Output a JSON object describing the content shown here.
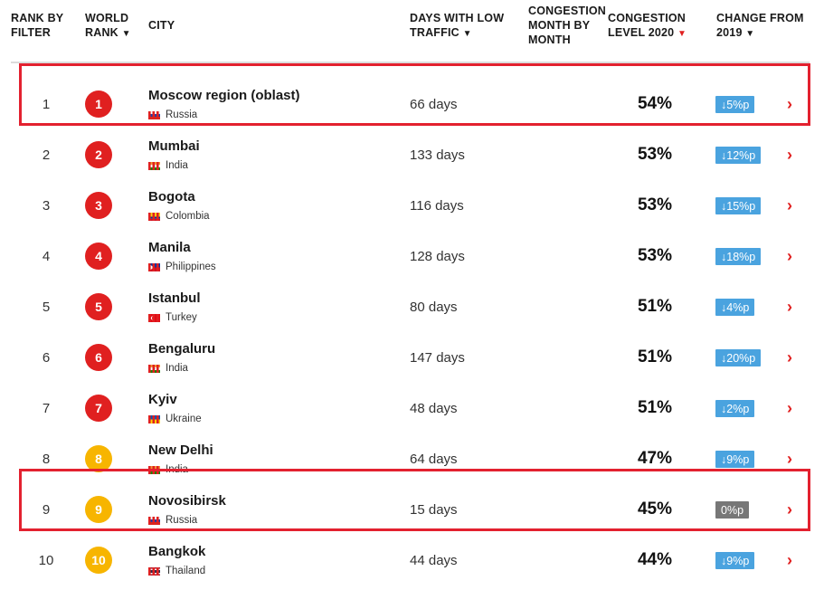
{
  "headers": {
    "rank_by_filter": [
      "RANK BY",
      "FILTER"
    ],
    "world_rank": [
      "WORLD",
      "RANK"
    ],
    "city": "CITY",
    "days_low_traffic": [
      "DAYS WITH LOW",
      "TRAFFIC"
    ],
    "congestion_month": [
      "CONGESTION",
      "MONTH BY",
      "MONTH"
    ],
    "congestion_level": [
      "CONGESTION",
      "LEVEL 2020"
    ],
    "change_from": [
      "CHANGE FROM",
      "2019"
    ]
  },
  "colors": {
    "rank_red": "#e02020",
    "rank_yellow": "#f7b500",
    "bar_red": "#e02020",
    "bar_yellow": "#f5c23b",
    "bar_green": "#8cc63f",
    "badge_blue": "#4aa3df",
    "badge_gray": "#777777",
    "highlight": "#e3212f"
  },
  "rows": [
    {
      "rank": "1",
      "world_rank": "1",
      "rank_color": "red",
      "city": "Moscow region (oblast)",
      "country": "Russia",
      "flag": "ru",
      "days": "66 days",
      "level": "54%",
      "change": "↓5%p",
      "change_type": "down",
      "bars": [
        "r",
        "r",
        "r",
        "y",
        "g",
        "y",
        "r",
        "r",
        "r",
        "r",
        "r",
        "r"
      ],
      "highlighted": true
    },
    {
      "rank": "2",
      "world_rank": "2",
      "rank_color": "red",
      "city": "Mumbai",
      "country": "India",
      "flag": "in",
      "days": "133 days",
      "level": "53%",
      "change": "↓12%p",
      "change_type": "down",
      "bars": [
        "r",
        "r",
        "r",
        "y",
        "y",
        "y",
        "y",
        "r",
        "r",
        "r",
        "r",
        "r"
      ],
      "highlighted": false
    },
    {
      "rank": "3",
      "world_rank": "3",
      "rank_color": "red",
      "city": "Bogota",
      "country": "Colombia",
      "flag": "co",
      "days": "116 days",
      "level": "53%",
      "change": "↓15%p",
      "change_type": "down",
      "bars": [
        "r",
        "r",
        "r",
        "g",
        "y",
        "y",
        "y",
        "r",
        "r",
        "r",
        "r",
        "r"
      ],
      "highlighted": false
    },
    {
      "rank": "4",
      "world_rank": "4",
      "rank_color": "red",
      "city": "Manila",
      "country": "Philippines",
      "flag": "ph",
      "days": "128 days",
      "level": "53%",
      "change": "↓18%p",
      "change_type": "down",
      "bars": [
        "r",
        "r",
        "r",
        "y",
        "g",
        "y",
        "r",
        "r",
        "r",
        "r",
        "r",
        "r"
      ],
      "highlighted": false
    },
    {
      "rank": "5",
      "world_rank": "5",
      "rank_color": "red",
      "city": "Istanbul",
      "country": "Turkey",
      "flag": "tr",
      "days": "80 days",
      "level": "51%",
      "change": "↓4%p",
      "change_type": "down",
      "bars": [
        "r",
        "r",
        "r",
        "y",
        "y",
        "y",
        "r",
        "r",
        "r",
        "r",
        "r",
        "r"
      ],
      "highlighted": false
    },
    {
      "rank": "6",
      "world_rank": "6",
      "rank_color": "red",
      "city": "Bengaluru",
      "country": "India",
      "flag": "in",
      "days": "147 days",
      "level": "51%",
      "change": "↓20%p",
      "change_type": "down",
      "bars": [
        "r",
        "r",
        "r",
        "g",
        "y",
        "y",
        "y",
        "y",
        "r",
        "r",
        "r",
        "r"
      ],
      "highlighted": false
    },
    {
      "rank": "7",
      "world_rank": "7",
      "rank_color": "red",
      "city": "Kyiv",
      "country": "Ukraine",
      "flag": "ua",
      "days": "48 days",
      "level": "51%",
      "change": "↓2%p",
      "change_type": "down",
      "bars": [
        "r",
        "r",
        "r",
        "y",
        "r",
        "r",
        "r",
        "r",
        "r",
        "r",
        "r",
        "r"
      ],
      "highlighted": false
    },
    {
      "rank": "8",
      "world_rank": "8",
      "rank_color": "yellow",
      "city": "New Delhi",
      "country": "India",
      "flag": "in",
      "days": "64 days",
      "level": "47%",
      "change": "↓9%p",
      "change_type": "down",
      "bars": [
        "r",
        "r",
        "r",
        "g",
        "y",
        "y",
        "r",
        "r",
        "r",
        "r",
        "r",
        "r"
      ],
      "highlighted": false
    },
    {
      "rank": "9",
      "world_rank": "9",
      "rank_color": "yellow",
      "city": "Novosibirsk",
      "country": "Russia",
      "flag": "ru",
      "days": "15 days",
      "level": "45%",
      "change": "0%p",
      "change_type": "neutral",
      "bars": [
        "r",
        "r",
        "r",
        "y",
        "y",
        "r",
        "r",
        "r",
        "r",
        "r",
        "r",
        "r"
      ],
      "highlighted": true
    },
    {
      "rank": "10",
      "world_rank": "10",
      "rank_color": "yellow",
      "city": "Bangkok",
      "country": "Thailand",
      "flag": "th",
      "days": "44 days",
      "level": "44%",
      "change": "↓9%p",
      "change_type": "down",
      "bars": [
        "r",
        "r",
        "r",
        "y",
        "r",
        "r",
        "r",
        "r",
        "r",
        "r",
        "r",
        "r"
      ],
      "highlighted": false
    }
  ]
}
